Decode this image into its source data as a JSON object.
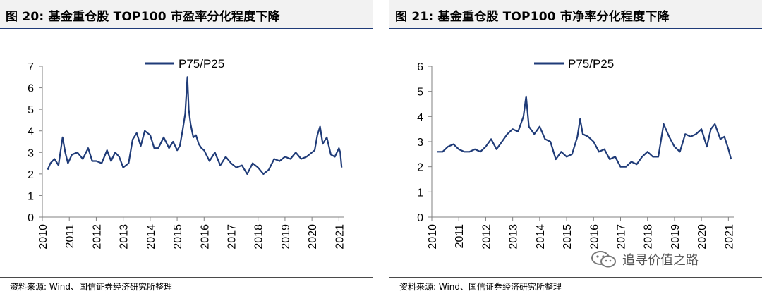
{
  "figures": [
    {
      "title": "图 20:  基金重仓股 TOP100 市盈率分化程度下降",
      "source": "资料来源:  Wind、国信证券经济研究所整理"
    },
    {
      "title": "图 21:  基金重仓股 TOP100 市净率分化程度下降",
      "source": "资料来源:  Wind、国信证券经济研究所整理"
    }
  ],
  "watermark": "追寻价值之路",
  "colors": {
    "line": "#1f3b78",
    "axis": "#808080",
    "title_band": "#f2f2f2"
  },
  "chart_data": [
    {
      "type": "line",
      "title": "",
      "xlabel": "",
      "ylabel": "",
      "x_range": [
        2010.0,
        2021.2
      ],
      "ylim": [
        0,
        7
      ],
      "y_ticks": [
        0,
        1,
        2,
        3,
        4,
        5,
        6,
        7
      ],
      "x_tick_labels": [
        "2010",
        "2011",
        "2012",
        "2013",
        "2014",
        "2015",
        "2016",
        "2017",
        "2018",
        "2019",
        "2020",
        "2021"
      ],
      "legend": "top-center",
      "grid": false,
      "series": [
        {
          "name": "P75/P25",
          "x": [
            2010.2,
            2010.3,
            2010.45,
            2010.6,
            2010.75,
            2010.85,
            2010.95,
            2011.1,
            2011.3,
            2011.5,
            2011.7,
            2011.85,
            2012.0,
            2012.2,
            2012.4,
            2012.55,
            2012.7,
            2012.85,
            2013.0,
            2013.2,
            2013.35,
            2013.5,
            2013.65,
            2013.8,
            2014.0,
            2014.15,
            2014.3,
            2014.5,
            2014.7,
            2014.85,
            2015.0,
            2015.1,
            2015.2,
            2015.3,
            2015.38,
            2015.43,
            2015.5,
            2015.6,
            2015.7,
            2015.8,
            2015.9,
            2016.0,
            2016.2,
            2016.4,
            2016.6,
            2016.8,
            2017.0,
            2017.2,
            2017.4,
            2017.6,
            2017.8,
            2018.0,
            2018.2,
            2018.4,
            2018.6,
            2018.8,
            2019.0,
            2019.2,
            2019.4,
            2019.6,
            2019.8,
            2020.0,
            2020.1,
            2020.2,
            2020.3,
            2020.4,
            2020.55,
            2020.7,
            2020.85,
            2021.0,
            2021.05,
            2021.1
          ],
          "y": [
            2.2,
            2.5,
            2.7,
            2.4,
            3.7,
            3.0,
            2.5,
            2.9,
            3.0,
            2.7,
            3.2,
            2.6,
            2.6,
            2.5,
            3.1,
            2.6,
            3.0,
            2.8,
            2.3,
            2.5,
            3.6,
            3.9,
            3.3,
            4.0,
            3.8,
            3.2,
            3.2,
            3.7,
            3.2,
            3.5,
            3.1,
            3.3,
            4.0,
            4.8,
            6.5,
            5.0,
            4.3,
            3.7,
            3.8,
            3.4,
            3.2,
            3.1,
            2.6,
            3.0,
            2.4,
            2.8,
            2.5,
            2.3,
            2.4,
            2.0,
            2.5,
            2.3,
            2.0,
            2.2,
            2.7,
            2.6,
            2.8,
            2.7,
            3.0,
            2.7,
            2.8,
            3.0,
            3.1,
            3.8,
            4.2,
            3.4,
            3.7,
            2.9,
            2.8,
            3.2,
            3.0,
            2.3
          ]
        }
      ]
    },
    {
      "type": "line",
      "title": "",
      "xlabel": "",
      "ylabel": "",
      "x_range": [
        2010.0,
        2021.2
      ],
      "ylim": [
        0,
        6
      ],
      "y_ticks": [
        0,
        1,
        2,
        3,
        4,
        5,
        6
      ],
      "x_tick_labels": [
        "2010",
        "2011",
        "2012",
        "2013",
        "2014",
        "2015",
        "2016",
        "2017",
        "2018",
        "2019",
        "2020",
        "2021"
      ],
      "legend": "top-center",
      "grid": false,
      "series": [
        {
          "name": "P75/P25",
          "x": [
            2010.2,
            2010.4,
            2010.6,
            2010.8,
            2011.0,
            2011.2,
            2011.4,
            2011.6,
            2011.8,
            2012.0,
            2012.2,
            2012.4,
            2012.6,
            2012.8,
            2013.0,
            2013.2,
            2013.3,
            2013.4,
            2013.5,
            2013.6,
            2013.8,
            2014.0,
            2014.2,
            2014.4,
            2014.6,
            2014.8,
            2015.0,
            2015.2,
            2015.4,
            2015.5,
            2015.6,
            2015.8,
            2016.0,
            2016.2,
            2016.4,
            2016.6,
            2016.8,
            2017.0,
            2017.2,
            2017.4,
            2017.6,
            2017.8,
            2018.0,
            2018.2,
            2018.4,
            2018.6,
            2018.8,
            2019.0,
            2019.2,
            2019.4,
            2019.6,
            2019.8,
            2020.0,
            2020.2,
            2020.35,
            2020.5,
            2020.7,
            2020.85,
            2021.0,
            2021.1
          ],
          "y": [
            2.6,
            2.6,
            2.8,
            2.9,
            2.7,
            2.6,
            2.6,
            2.7,
            2.6,
            2.8,
            3.1,
            2.7,
            3.0,
            3.3,
            3.5,
            3.4,
            3.7,
            4.0,
            4.8,
            3.6,
            3.3,
            3.6,
            3.1,
            3.0,
            2.3,
            2.6,
            2.4,
            2.5,
            3.2,
            3.9,
            3.3,
            3.2,
            3.0,
            2.6,
            2.7,
            2.3,
            2.4,
            2.0,
            2.0,
            2.2,
            2.1,
            2.4,
            2.6,
            2.4,
            2.4,
            3.7,
            3.2,
            2.8,
            2.6,
            3.3,
            3.2,
            3.3,
            3.5,
            2.8,
            3.5,
            3.7,
            3.1,
            3.2,
            2.7,
            2.3
          ]
        }
      ]
    }
  ]
}
